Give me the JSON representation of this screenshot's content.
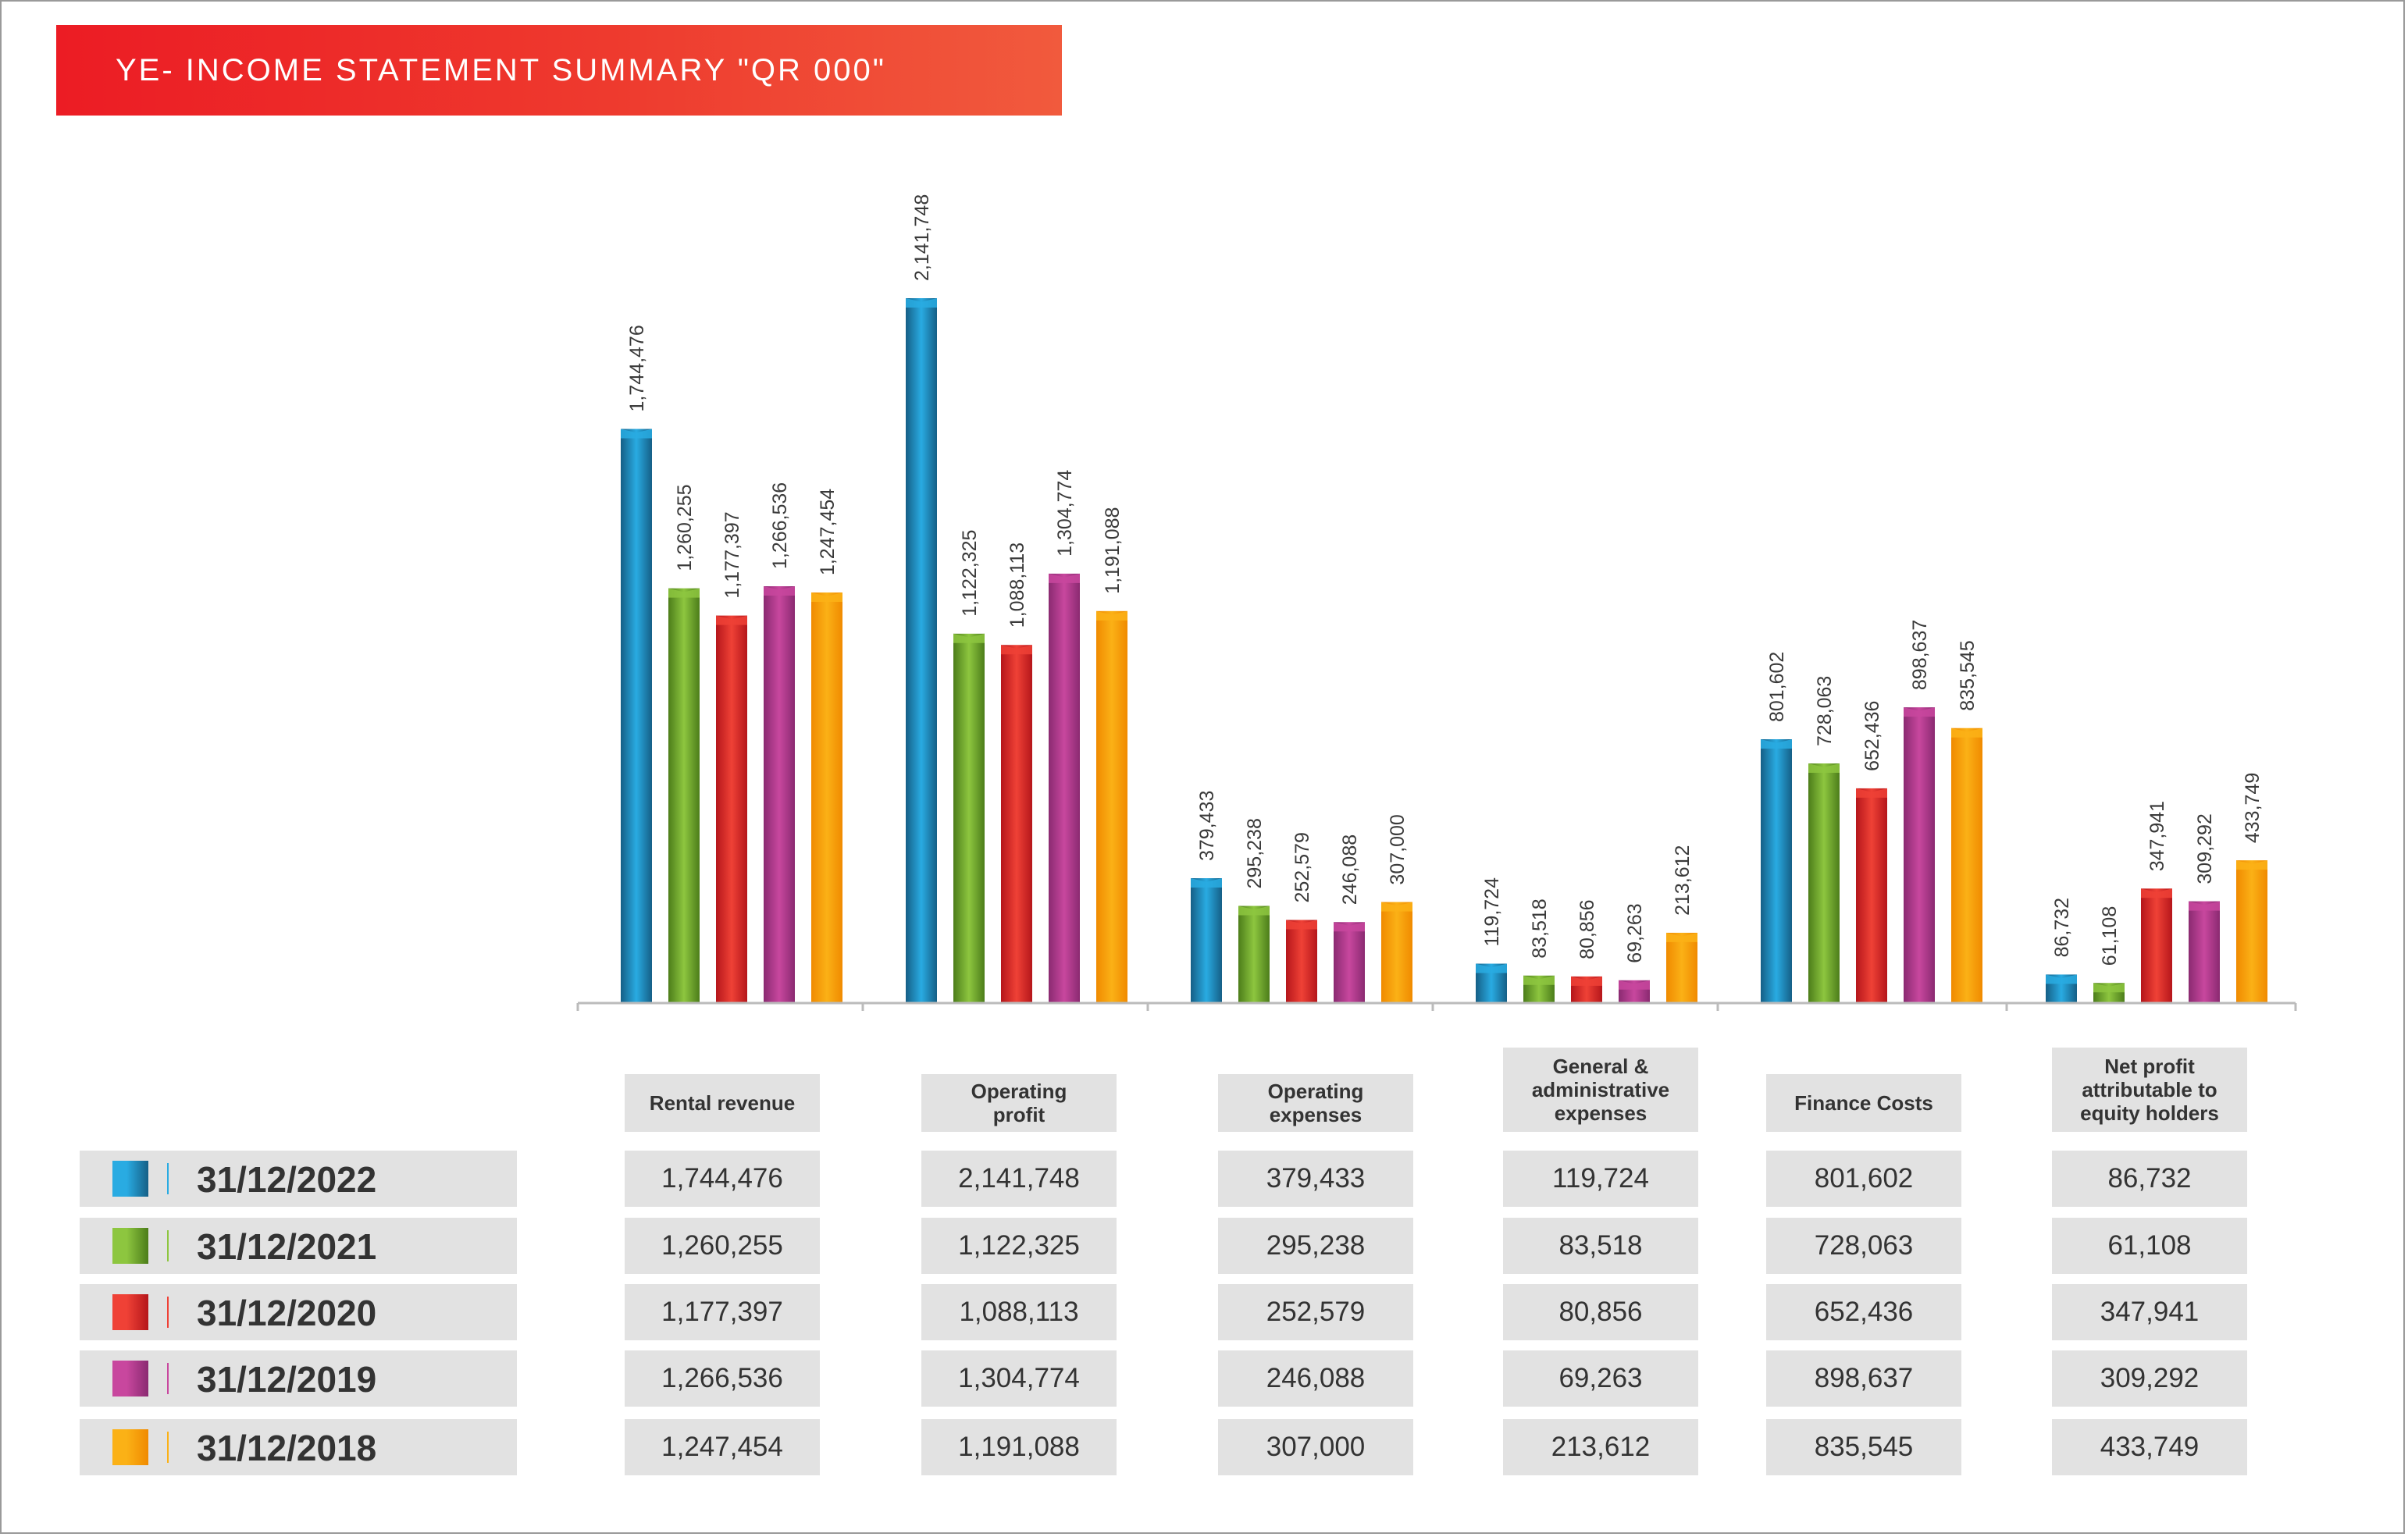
{
  "title": "YE- INCOME STATEMENT SUMMARY \"QR 000\"",
  "colors": {
    "title_bar": "#ec1c24",
    "axis": "#bbbbbb",
    "table_cell": "#e2e2e2"
  },
  "legend": [
    {
      "label": "31/12/2022",
      "color": "#29abe2",
      "color_dark": "#155f86"
    },
    {
      "label": "31/12/2021",
      "color": "#8dc63f",
      "color_dark": "#4c7d1a"
    },
    {
      "label": "31/12/2020",
      "color": "#ef4136",
      "color_dark": "#b5161b"
    },
    {
      "label": "31/12/2019",
      "color": "#c8479e",
      "color_dark": "#8a2a71"
    },
    {
      "label": "31/12/2018",
      "color": "#fbb116",
      "color_dark": "#f08a00"
    }
  ],
  "chart_data": {
    "type": "bar",
    "title": "YE- INCOME STATEMENT SUMMARY \"QR 000\"",
    "categories": [
      "Rental revenue",
      "Operating profit",
      "Operating expenses",
      "General & administrative expenses",
      "Finance Costs",
      "Net profit attributable to equity holders"
    ],
    "series": [
      {
        "name": "31/12/2022",
        "values": [
          1744476,
          2141748,
          379433,
          119724,
          801602,
          86732
        ],
        "labels": [
          "1,744,476",
          "2,141,748",
          "379,433",
          "119,724",
          "801,602",
          "86,732"
        ]
      },
      {
        "name": "31/12/2021",
        "values": [
          1260255,
          1122325,
          295238,
          83518,
          728063,
          61108
        ],
        "labels": [
          "1,260,255",
          "1,122,325",
          "295,238",
          "83,518",
          "728,063",
          "61,108"
        ]
      },
      {
        "name": "31/12/2020",
        "values": [
          1177397,
          1088113,
          252579,
          80856,
          652436,
          347941
        ],
        "labels": [
          "1,177,397",
          "1,088,113",
          "252,579",
          "80,856",
          "652,436",
          "347,941"
        ]
      },
      {
        "name": "31/12/2019",
        "values": [
          1266536,
          1304774,
          246088,
          69263,
          898637,
          309292
        ],
        "labels": [
          "1,266,536",
          "1,304,774",
          "246,088",
          "69,263",
          "898,637",
          "309,292"
        ]
      },
      {
        "name": "31/12/2018",
        "values": [
          1247454,
          1191088,
          307000,
          213612,
          835545,
          433749
        ],
        "labels": [
          "1,247,454",
          "1,191,088",
          "307,000",
          "213,612",
          "835,545",
          "433,749"
        ]
      }
    ],
    "ylim": [
      0,
      2141748
    ],
    "grid": false,
    "legend_position": "bottom-left"
  },
  "table": {
    "headers": [
      [
        "Rental revenue"
      ],
      [
        "Operating",
        "profit"
      ],
      [
        "Operating",
        "expenses"
      ],
      [
        "General &",
        "administrative",
        "expenses"
      ],
      [
        "Finance Costs"
      ],
      [
        "Net profit",
        "attributable to",
        "equity holders"
      ]
    ],
    "rows": [
      [
        "1,744,476",
        "2,141,748",
        "379,433",
        "119,724",
        "801,602",
        "86,732"
      ],
      [
        "1,260,255",
        "1,122,325",
        "295,238",
        "83,518",
        "728,063",
        "61,108"
      ],
      [
        "1,177,397",
        "1,088,113",
        "252,579",
        "80,856",
        "652,436",
        "347,941"
      ],
      [
        "1,266,536",
        "1,304,774",
        "246,088",
        "69,263",
        "898,637",
        "309,292"
      ],
      [
        "1,247,454",
        "1,191,088",
        "307,000",
        "213,612",
        "835,545",
        "433,749"
      ]
    ]
  }
}
